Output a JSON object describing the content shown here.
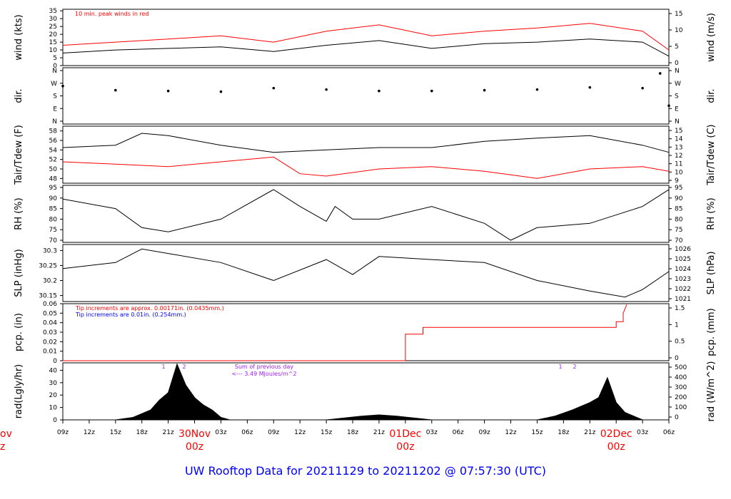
{
  "title": "UW Rooftop Data for 20211129  to  20211202 @ 07:57:30  (UTC)",
  "colors": {
    "red": "#ff0000",
    "blue": "#0000ff",
    "purple": "#a020f0",
    "black": "#000000",
    "title": "#0000ff"
  },
  "x_axis": {
    "ticks": [
      "09z",
      "12z",
      "15z",
      "18z",
      "21z",
      "03z",
      "06z",
      "09z",
      "12z",
      "15z",
      "18z",
      "21z",
      "03z",
      "06z",
      "09z",
      "12z",
      "15z",
      "18z",
      "21z",
      "03z",
      "06z"
    ],
    "day_labels": [
      {
        "date": "30Nov",
        "hour": "00z"
      },
      {
        "date": "01Dec",
        "hour": "00z"
      },
      {
        "date": "02Dec",
        "hour": "00z"
      }
    ],
    "edge_label": {
      "date": "ov",
      "hour": "z"
    }
  },
  "chart_data": [
    {
      "type": "line",
      "ylabel": "wind (kts)",
      "ylabel_right": "wind (m/s)",
      "ylim": [
        0,
        36
      ],
      "yticks": [
        0,
        5,
        10,
        15,
        20,
        25,
        30,
        35
      ],
      "yticks_right": [
        0,
        5,
        10,
        15
      ],
      "annotation": "10 min. peak winds in red",
      "series": [
        {
          "color": "#000000",
          "x": [
            0,
            6,
            12,
            18,
            24,
            30,
            36,
            42,
            48,
            54,
            60,
            66,
            69
          ],
          "y": [
            8,
            10,
            11,
            12,
            9,
            13,
            16,
            11,
            14,
            15,
            17,
            15,
            6
          ]
        },
        {
          "color": "#ff0000",
          "x": [
            0,
            6,
            12,
            18,
            24,
            30,
            36,
            42,
            48,
            54,
            60,
            66,
            69
          ],
          "y": [
            13,
            15,
            17,
            19,
            15,
            22,
            26,
            19,
            22,
            24,
            27,
            22,
            10
          ]
        }
      ]
    },
    {
      "type": "scatter",
      "ylabel": "dir.",
      "ylabel_right": "dir.",
      "yticks": [
        "N",
        "W",
        "S",
        "E",
        "N"
      ],
      "ylim": [
        0,
        360
      ],
      "series": [
        {
          "color": "#000000",
          "x": [
            0,
            6,
            12,
            18,
            24,
            30,
            36,
            42,
            48,
            54,
            60,
            66,
            68,
            69
          ],
          "y": [
            250,
            220,
            215,
            210,
            235,
            225,
            215,
            215,
            220,
            225,
            240,
            235,
            340,
            110
          ]
        }
      ]
    },
    {
      "type": "line",
      "ylabel": "Tair/Tdew (F)",
      "ylabel_right": "Tair/Tdew (C)",
      "ylim": [
        47,
        59
      ],
      "yticks": [
        48,
        50,
        52,
        54,
        56,
        58
      ],
      "yticks_right": [
        9,
        10,
        11,
        12,
        13,
        14,
        15
      ],
      "series": [
        {
          "color": "#000000",
          "x": [
            0,
            6,
            9,
            12,
            18,
            24,
            30,
            36,
            42,
            48,
            54,
            60,
            66,
            69
          ],
          "y": [
            54.5,
            55,
            57.5,
            57,
            55,
            53.5,
            54,
            54.5,
            54.5,
            55.8,
            56.5,
            57,
            55,
            53.5
          ]
        },
        {
          "color": "#ff0000",
          "x": [
            0,
            6,
            12,
            18,
            24,
            27,
            30,
            36,
            42,
            48,
            54,
            60,
            66,
            69
          ],
          "y": [
            51.5,
            51,
            50.5,
            51.5,
            52.5,
            49,
            48.5,
            50,
            50.5,
            49.5,
            48,
            50,
            50.5,
            49.5
          ]
        }
      ]
    },
    {
      "type": "line",
      "ylabel": "RH (%)",
      "ylabel_right": "RH (%)",
      "ylim": [
        69,
        96
      ],
      "yticks": [
        70,
        75,
        80,
        85,
        90,
        95
      ],
      "series": [
        {
          "color": "#000000",
          "x": [
            0,
            6,
            9,
            12,
            18,
            24,
            27,
            30,
            31,
            33,
            36,
            42,
            48,
            51,
            54,
            60,
            66,
            69
          ],
          "y": [
            89.5,
            85,
            76,
            74,
            80,
            94,
            86,
            79,
            86,
            80,
            80,
            86,
            78,
            70,
            76,
            78,
            86,
            94
          ]
        }
      ]
    },
    {
      "type": "line",
      "ylabel": "SLP (inHg)",
      "ylabel_right": "SLP (hPa)",
      "ylim": [
        30.13,
        30.32
      ],
      "yticks": [
        30.15,
        30.2,
        30.25,
        30.3
      ],
      "yticks_right": [
        1021,
        1022,
        1023,
        1024,
        1025,
        1026
      ],
      "series": [
        {
          "color": "#000000",
          "x": [
            0,
            6,
            9,
            12,
            18,
            24,
            30,
            33,
            36,
            42,
            48,
            54,
            60,
            64,
            66,
            69
          ],
          "y": [
            30.24,
            30.26,
            30.305,
            30.29,
            30.26,
            30.2,
            30.27,
            30.22,
            30.28,
            30.27,
            30.26,
            30.2,
            30.165,
            30.145,
            30.17,
            30.23
          ]
        }
      ]
    },
    {
      "type": "line",
      "ylabel": "pcp. (in)",
      "ylabel_right": "pcp. (mm)",
      "ylim": [
        0,
        0.06
      ],
      "yticks": [
        0,
        0.01,
        0.02,
        0.03,
        0.04,
        0.05,
        0.06
      ],
      "yticks_right": [
        0,
        0.5,
        1,
        1.5
      ],
      "annotations": [
        {
          "text": "Tip increments are approx. 0.00171in. (0.0435mm.)",
          "color": "#ff0000"
        },
        {
          "text": "Tip increments are 0.01in. (0.254mm.)",
          "color": "#0000ff"
        }
      ],
      "series": [
        {
          "color": "#ff0000",
          "x": [
            0,
            39,
            39,
            41,
            41,
            63,
            63,
            63.8,
            63.8,
            64.2
          ],
          "y": [
            0,
            0,
            0.028,
            0.028,
            0.035,
            0.035,
            0.041,
            0.041,
            0.05,
            0.059
          ]
        }
      ]
    },
    {
      "type": "area",
      "ylabel": "rad(Lgly/hr)",
      "ylabel_right": "rad (W/m^2)",
      "ylim": [
        0,
        46
      ],
      "yticks": [
        0,
        10,
        20,
        30,
        40
      ],
      "yticks_right": [
        0,
        100,
        200,
        300,
        400,
        500
      ],
      "markers": [
        "1",
        "2",
        "1",
        "2"
      ],
      "sum_note": [
        "Sum of previous day",
        "<--- 3.49 MJoules/m^2"
      ],
      "series": [
        {
          "color": "#000000",
          "x": [
            6,
            8,
            10,
            11,
            12,
            13,
            14,
            15,
            16,
            17,
            18,
            19,
            20
          ],
          "y": [
            0,
            2,
            8,
            16,
            22,
            45,
            28,
            18,
            12,
            8,
            2,
            0,
            0
          ]
        },
        {
          "color": "#000000",
          "x": [
            30,
            32,
            34,
            36,
            38,
            40,
            42
          ],
          "y": [
            0,
            1.5,
            3,
            4,
            3,
            1.5,
            0
          ]
        },
        {
          "color": "#000000",
          "x": [
            54,
            56,
            58,
            60,
            61,
            62,
            63,
            64,
            66
          ],
          "y": [
            0,
            3,
            8,
            14,
            18,
            34,
            14,
            6,
            0
          ]
        }
      ]
    }
  ]
}
